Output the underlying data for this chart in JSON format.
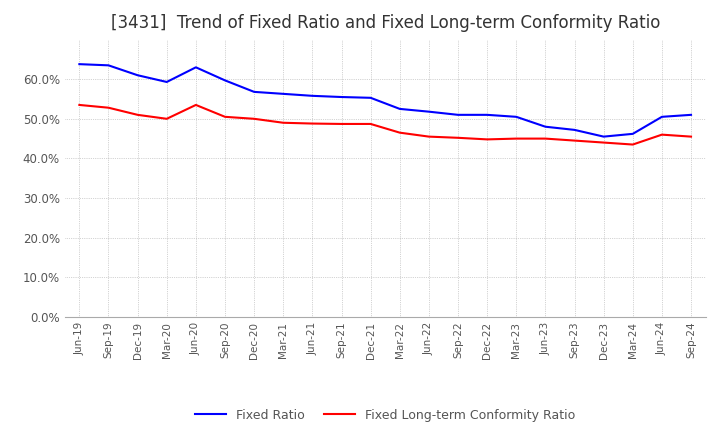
{
  "title": "[3431]  Trend of Fixed Ratio and Fixed Long-term Conformity Ratio",
  "x_labels": [
    "Jun-19",
    "Sep-19",
    "Dec-19",
    "Mar-20",
    "Jun-20",
    "Sep-20",
    "Dec-20",
    "Mar-21",
    "Jun-21",
    "Sep-21",
    "Dec-21",
    "Mar-22",
    "Jun-22",
    "Sep-22",
    "Dec-22",
    "Mar-23",
    "Jun-23",
    "Sep-23",
    "Dec-23",
    "Mar-24",
    "Jun-24",
    "Sep-24"
  ],
  "fixed_ratio": [
    0.638,
    0.635,
    0.61,
    0.593,
    0.63,
    0.597,
    0.568,
    0.563,
    0.558,
    0.555,
    0.553,
    0.525,
    0.518,
    0.51,
    0.51,
    0.505,
    0.48,
    0.472,
    0.455,
    0.462,
    0.505,
    0.51
  ],
  "fixed_lt_ratio": [
    0.535,
    0.528,
    0.51,
    0.5,
    0.535,
    0.505,
    0.5,
    0.49,
    0.488,
    0.487,
    0.487,
    0.465,
    0.455,
    0.452,
    0.448,
    0.45,
    0.45,
    0.445,
    0.44,
    0.435,
    0.46,
    0.455
  ],
  "fixed_ratio_color": "#0000ff",
  "fixed_lt_ratio_color": "#ff0000",
  "ylim": [
    0.0,
    0.7
  ],
  "yticks": [
    0.0,
    0.1,
    0.2,
    0.3,
    0.4,
    0.5,
    0.6
  ],
  "background_color": "#ffffff",
  "grid_color": "#aaaaaa",
  "title_fontsize": 12,
  "legend_labels": [
    "Fixed Ratio",
    "Fixed Long-term Conformity Ratio"
  ]
}
